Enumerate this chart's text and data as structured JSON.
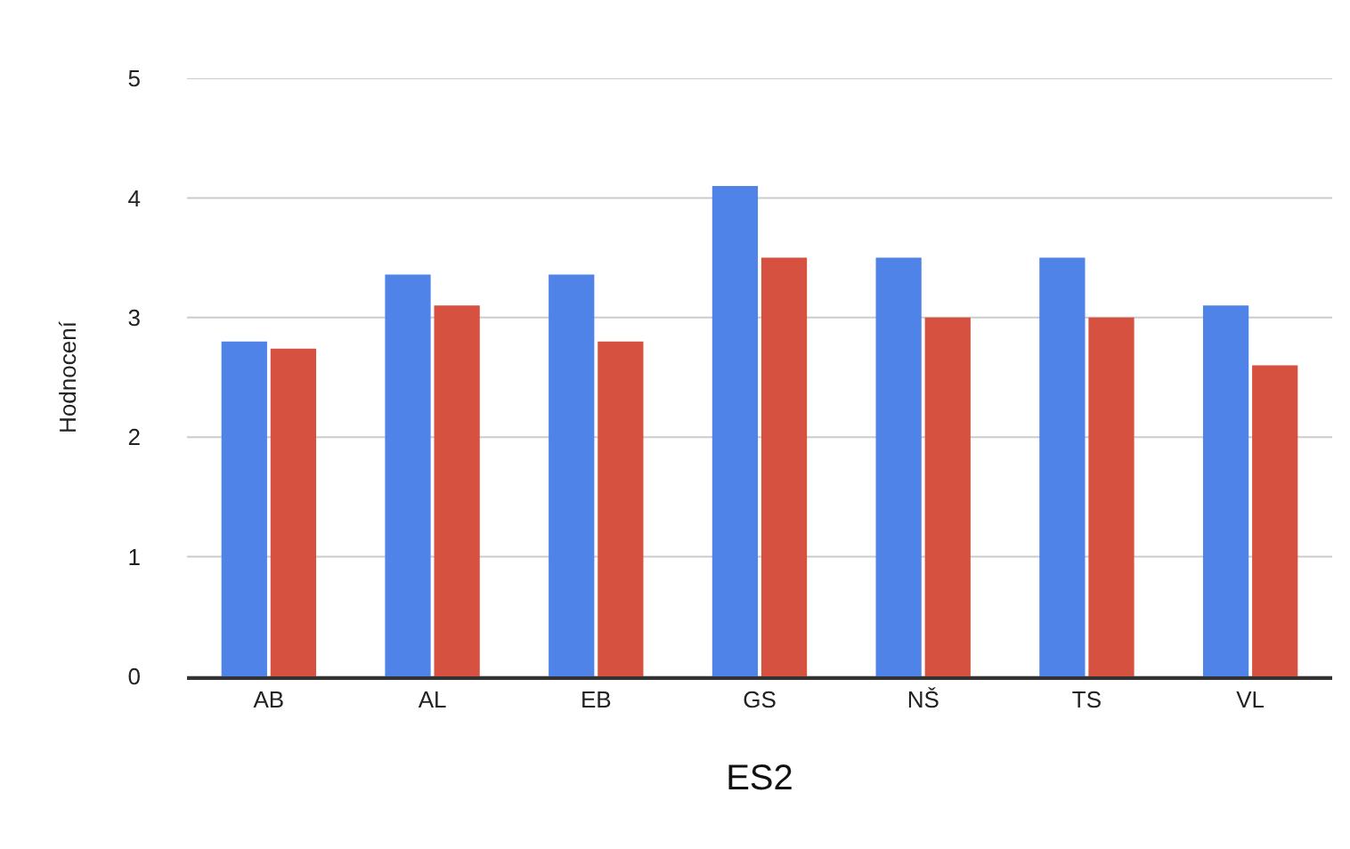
{
  "chart_data": {
    "type": "bar",
    "title": "ES2",
    "ylabel": "Hodnocení",
    "categories": [
      "AB",
      "AL",
      "EB",
      "GS",
      "NŠ",
      "TS",
      "VL"
    ],
    "series": [
      {
        "color": "#5083e8",
        "values": [
          2.8,
          3.36,
          3.36,
          4.1,
          3.5,
          3.5,
          3.1
        ]
      },
      {
        "color": "#d65140",
        "values": [
          2.74,
          3.1,
          2.8,
          3.5,
          3,
          3,
          2.6
        ]
      }
    ],
    "ylim": [
      0,
      5
    ],
    "yticks": [
      0,
      1,
      2,
      3,
      4,
      5
    ],
    "grid": "y"
  }
}
